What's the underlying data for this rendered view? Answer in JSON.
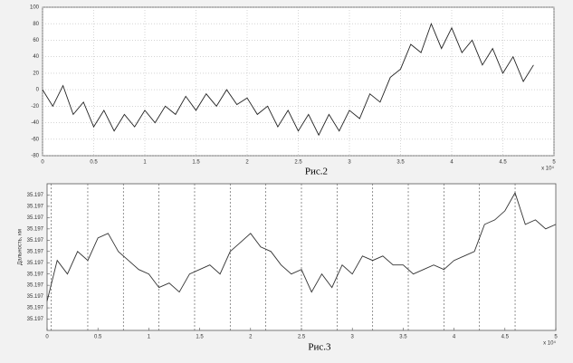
{
  "chart_data": [
    {
      "type": "line",
      "caption": "Рис.2",
      "xlabel_exponent": "x 10⁴",
      "color": "#222222",
      "grid": true,
      "x": [
        0,
        0.1,
        0.2,
        0.3,
        0.4,
        0.5,
        0.6,
        0.7,
        0.8,
        0.9,
        1,
        1.1,
        1.2,
        1.3,
        1.4,
        1.5,
        1.6,
        1.7,
        1.8,
        1.9,
        2,
        2.1,
        2.2,
        2.3,
        2.4,
        2.5,
        2.6,
        2.7,
        2.8,
        2.9,
        3,
        3.1,
        3.2,
        3.3,
        3.4,
        3.5,
        3.6,
        3.7,
        3.8,
        3.9,
        4,
        4.1,
        4.2,
        4.3,
        4.4,
        4.5,
        4.6,
        4.7,
        4.8
      ],
      "values": [
        0,
        -20,
        5,
        -30,
        -15,
        -45,
        -25,
        -50,
        -30,
        -45,
        -25,
        -40,
        -20,
        -30,
        -8,
        -25,
        -5,
        -20,
        0,
        -18,
        -10,
        -30,
        -20,
        -45,
        -25,
        -50,
        -30,
        -55,
        -30,
        -50,
        -25,
        -35,
        -5,
        -15,
        15,
        25,
        55,
        45,
        80,
        50,
        75,
        45,
        60,
        30,
        50,
        20,
        40,
        10,
        30
      ],
      "xlim": [
        0,
        5
      ],
      "xticks": [
        0,
        0.5,
        1,
        1.5,
        2,
        2.5,
        3,
        3.5,
        4,
        4.5,
        5
      ],
      "ylim": [
        -80,
        100
      ],
      "yticks": [
        -80,
        -60,
        -40,
        -20,
        0,
        20,
        40,
        60,
        80,
        100
      ]
    },
    {
      "type": "line",
      "caption": "Рис.3",
      "xlabel_exponent": "x 10⁴",
      "ylabel": "Дальность, км",
      "color": "#333333",
      "grid": false,
      "vlines": [
        0.04,
        0.4,
        0.75,
        1.1,
        1.45,
        1.8,
        2.15,
        2.5,
        2.85,
        3.2,
        3.55,
        3.9,
        4.25,
        4.6
      ],
      "x": [
        0,
        0.1,
        0.2,
        0.3,
        0.4,
        0.5,
        0.6,
        0.7,
        0.8,
        0.9,
        1,
        1.1,
        1.2,
        1.3,
        1.4,
        1.5,
        1.6,
        1.7,
        1.8,
        1.9,
        2,
        2.1,
        2.2,
        2.3,
        2.4,
        2.5,
        2.6,
        2.7,
        2.8,
        2.9,
        3,
        3.1,
        3.2,
        3.3,
        3.4,
        3.5,
        3.6,
        3.7,
        3.8,
        3.9,
        4,
        4.1,
        4.2,
        4.3,
        4.4,
        4.5,
        4.6,
        4.7,
        4.8,
        4.9,
        5
      ],
      "values": [
        35.197,
        35.19718,
        35.19712,
        35.19722,
        35.19718,
        35.19728,
        35.1973,
        35.19722,
        35.19718,
        35.19714,
        35.19712,
        35.19706,
        35.19708,
        35.19704,
        35.19712,
        35.19714,
        35.19716,
        35.19712,
        35.19722,
        35.19726,
        35.1973,
        35.19724,
        35.19722,
        35.19716,
        35.19712,
        35.19714,
        35.19704,
        35.19712,
        35.19706,
        35.19716,
        35.19712,
        35.1972,
        35.19718,
        35.1972,
        35.19716,
        35.19716,
        35.19712,
        35.19714,
        35.19716,
        35.19714,
        35.19718,
        35.1972,
        35.19722,
        35.19734,
        35.19736,
        35.1974,
        35.19748,
        35.19734,
        35.19736,
        35.19732,
        35.19734
      ],
      "xlim": [
        0,
        5
      ],
      "xticks": [
        0,
        0.5,
        1,
        1.5,
        2,
        2.5,
        3,
        3.5,
        4,
        4.5,
        5
      ],
      "ylim": [
        35.19687,
        35.19752
      ],
      "yticks": [
        {
          "value": 35.19692,
          "label": "35.197"
        },
        {
          "value": 35.19697,
          "label": "35.197"
        },
        {
          "value": 35.19702,
          "label": "35.197"
        },
        {
          "value": 35.19707,
          "label": "35.197"
        },
        {
          "value": 35.19712,
          "label": "35.197"
        },
        {
          "value": 35.19717,
          "label": "35.197"
        },
        {
          "value": 35.19722,
          "label": "35.197"
        },
        {
          "value": 35.19727,
          "label": "35.197"
        },
        {
          "value": 35.19732,
          "label": "35.197"
        },
        {
          "value": 35.19737,
          "label": "35.197"
        },
        {
          "value": 35.19742,
          "label": "35.197"
        },
        {
          "value": 35.19747,
          "label": "35.197"
        }
      ]
    }
  ]
}
